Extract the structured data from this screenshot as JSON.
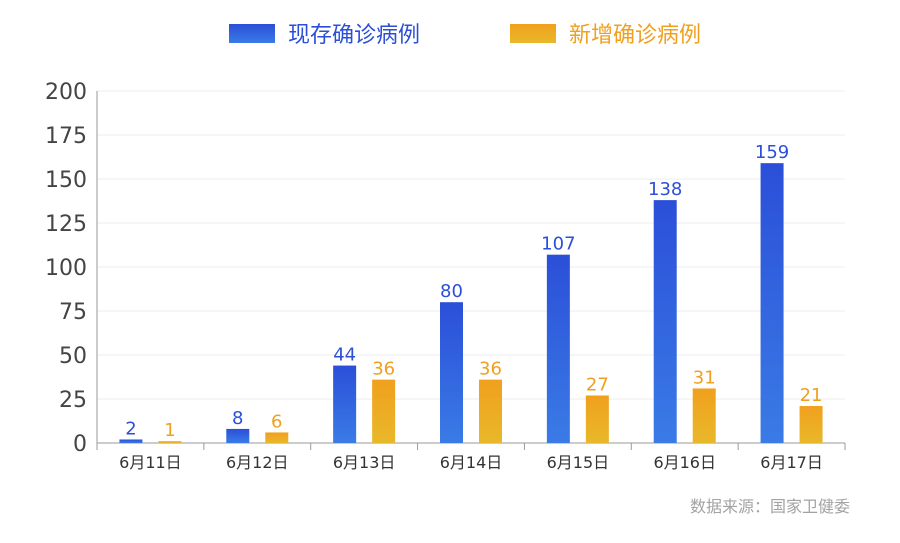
{
  "chart_data": {
    "type": "bar",
    "categories": [
      "6月11日",
      "6月12日",
      "6月13日",
      "6月14日",
      "6月15日",
      "6月16日",
      "6月17日"
    ],
    "series": [
      {
        "name": "现存确诊病例",
        "values": [
          2,
          8,
          44,
          80,
          107,
          138,
          159
        ],
        "labels": [
          "2",
          "8",
          "44",
          "80",
          "107",
          "138",
          "159"
        ],
        "color": "#2b4fd8",
        "color_light": "#3a7be6"
      },
      {
        "name": "新增确诊病例",
        "values": [
          1,
          6,
          36,
          36,
          27,
          31,
          21
        ],
        "labels": [
          "1",
          "6",
          "36",
          "36",
          "27",
          "31",
          "21"
        ],
        "color": "#f0a01e",
        "color_light": "#e9b82a"
      }
    ],
    "yticks": [
      "0",
      "25",
      "50",
      "75",
      "100",
      "125",
      "150",
      "175",
      "200"
    ],
    "ylim": [
      0,
      200
    ],
    "grid": true,
    "legend": "top-center",
    "source": "数据来源：国家卫健委"
  }
}
